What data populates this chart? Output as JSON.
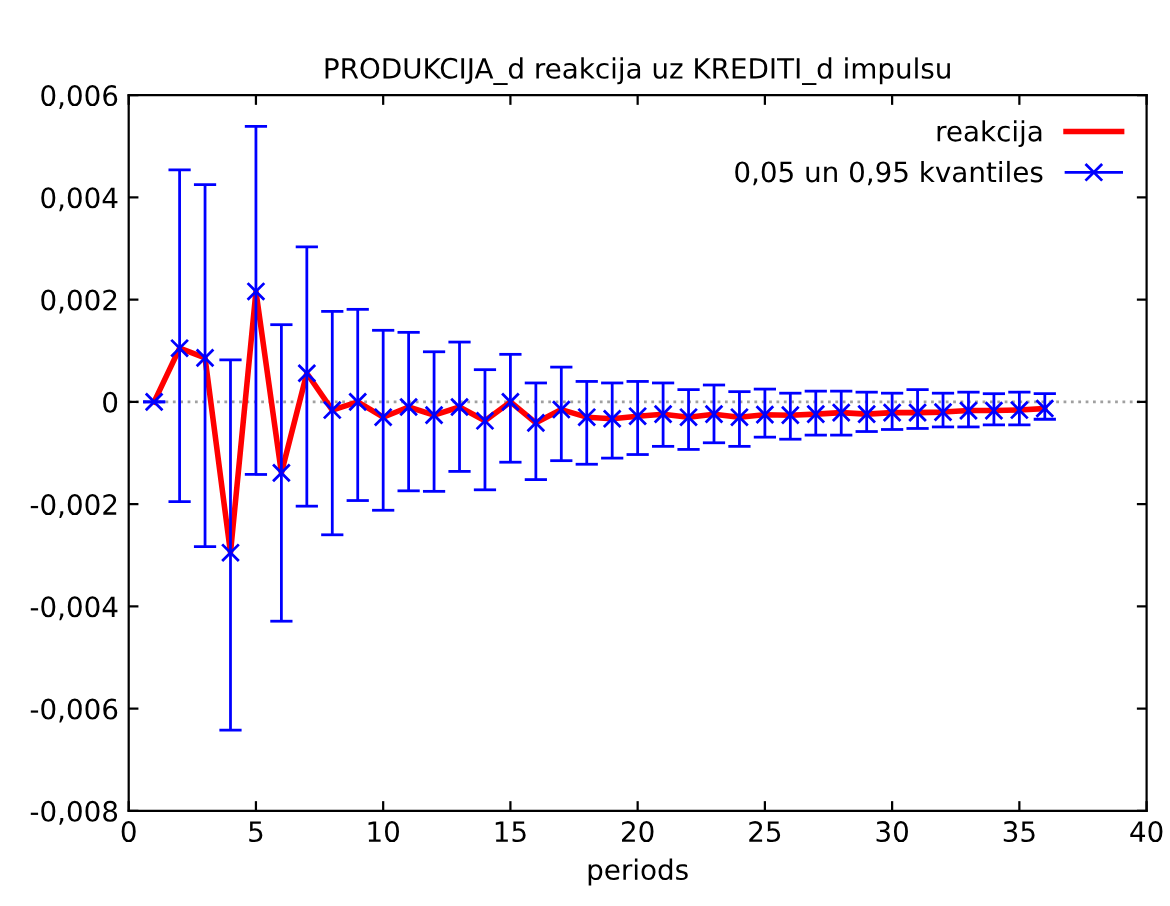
{
  "chart_data": {
    "type": "line",
    "title": "PRODUKCIJA_d reakcija uz KREDITI_d impulsu",
    "xlabel": "periods",
    "x": [
      1,
      2,
      3,
      4,
      5,
      6,
      7,
      8,
      9,
      10,
      11,
      12,
      13,
      14,
      15,
      16,
      17,
      18,
      19,
      20,
      21,
      22,
      23,
      24,
      25,
      26,
      27,
      28,
      29,
      30,
      31,
      32,
      33,
      34,
      35,
      36
    ],
    "series": [
      {
        "name": "reakcija",
        "color": "#ff0000",
        "marker": "none",
        "line_style": "solid",
        "values": [
          0,
          0.00105,
          0.00086,
          -0.00295,
          0.00216,
          -0.00139,
          0.00056,
          -0.00016,
          0,
          -0.0003,
          -0.0001,
          -0.00026,
          -0.0001,
          -0.00037,
          0,
          -0.00041,
          -0.00015,
          -0.0003,
          -0.00033,
          -0.00028,
          -0.00024,
          -0.0003,
          -0.00024,
          -0.0003,
          -0.00025,
          -0.00026,
          -0.00024,
          -0.00021,
          -0.00024,
          -0.00021,
          -0.00021,
          -0.0002,
          -0.00017,
          -0.00017,
          -0.00016,
          -0.00013
        ]
      },
      {
        "name": "0,05 un 0,95 kvantiles",
        "type": "scatter",
        "color": "#0000ff",
        "marker": "cross",
        "values": [
          0,
          0.00105,
          0.00086,
          -0.00295,
          0.00216,
          -0.00139,
          0.00056,
          -0.00016,
          0,
          -0.0003,
          -0.0001,
          -0.00026,
          -0.0001,
          -0.00037,
          0,
          -0.00041,
          -0.00015,
          -0.0003,
          -0.00033,
          -0.00028,
          -0.00024,
          -0.0003,
          -0.00024,
          -0.0003,
          -0.00025,
          -0.00026,
          -0.00024,
          -0.00021,
          -0.00024,
          -0.00021,
          -0.00021,
          -0.0002,
          -0.00017,
          -0.00017,
          -0.00016,
          -0.00013
        ],
        "errors": [
          [
            0,
            0
          ],
          [
            -0.00195,
            0.00454
          ],
          [
            -0.00283,
            0.00425
          ],
          [
            -0.00642,
            0.00082
          ],
          [
            -0.00142,
            0.00539
          ],
          [
            -0.00429,
            0.00151
          ],
          [
            -0.00204,
            0.00303
          ],
          [
            -0.0026,
            0.00177
          ],
          [
            -0.00193,
            0.00181
          ],
          [
            -0.00212,
            0.0014
          ],
          [
            -0.00174,
            0.00136
          ],
          [
            -0.00175,
            0.00098
          ],
          [
            -0.00136,
            0.00117
          ],
          [
            -0.00172,
            0.00063
          ],
          [
            -0.00118,
            0.00093
          ],
          [
            -0.00152,
            0.00037
          ],
          [
            -0.00115,
            0.00068
          ],
          [
            -0.00122,
            0.0004
          ],
          [
            -0.0011,
            0.00037
          ],
          [
            -0.00103,
            0.0004
          ],
          [
            -0.00087,
            0.00037
          ],
          [
            -0.00093,
            0.00024
          ],
          [
            -0.0008,
            0.00033
          ],
          [
            -0.00087,
            0.0002
          ],
          [
            -0.00069,
            0.00025
          ],
          [
            -0.00073,
            0.00017
          ],
          [
            -0.00065,
            0.00021
          ],
          [
            -0.00065,
            0.00021
          ],
          [
            -0.00058,
            0.00019
          ],
          [
            -0.00054,
            0.00017
          ],
          [
            -0.00052,
            0.00024
          ],
          [
            -0.00049,
            0.00017
          ],
          [
            -0.00049,
            0.00019
          ],
          [
            -0.00045,
            0.00016
          ],
          [
            -0.00045,
            0.00019
          ],
          [
            -0.00034,
            0.00016
          ]
        ]
      }
    ],
    "xlim": [
      0,
      40
    ],
    "xticks": [
      0,
      5,
      10,
      15,
      20,
      25,
      30,
      35,
      40
    ],
    "ylim": [
      -0.008,
      0.006
    ],
    "yticks": [
      {
        "value": -0.008,
        "label": "-0,008"
      },
      {
        "value": -0.006,
        "label": "-0,006"
      },
      {
        "value": -0.004,
        "label": "-0,004"
      },
      {
        "value": -0.002,
        "label": "-0,002"
      },
      {
        "value": 0,
        "label": "0"
      },
      {
        "value": 0.002,
        "label": "0,002"
      },
      {
        "value": 0.004,
        "label": "0,004"
      },
      {
        "value": 0.006,
        "label": "0,006"
      }
    ],
    "ref_lines": [
      {
        "axis": "y",
        "value": 0,
        "color": "#a0a0a0",
        "line_style": "dotted"
      }
    ],
    "legend": "top right",
    "grid": false
  }
}
